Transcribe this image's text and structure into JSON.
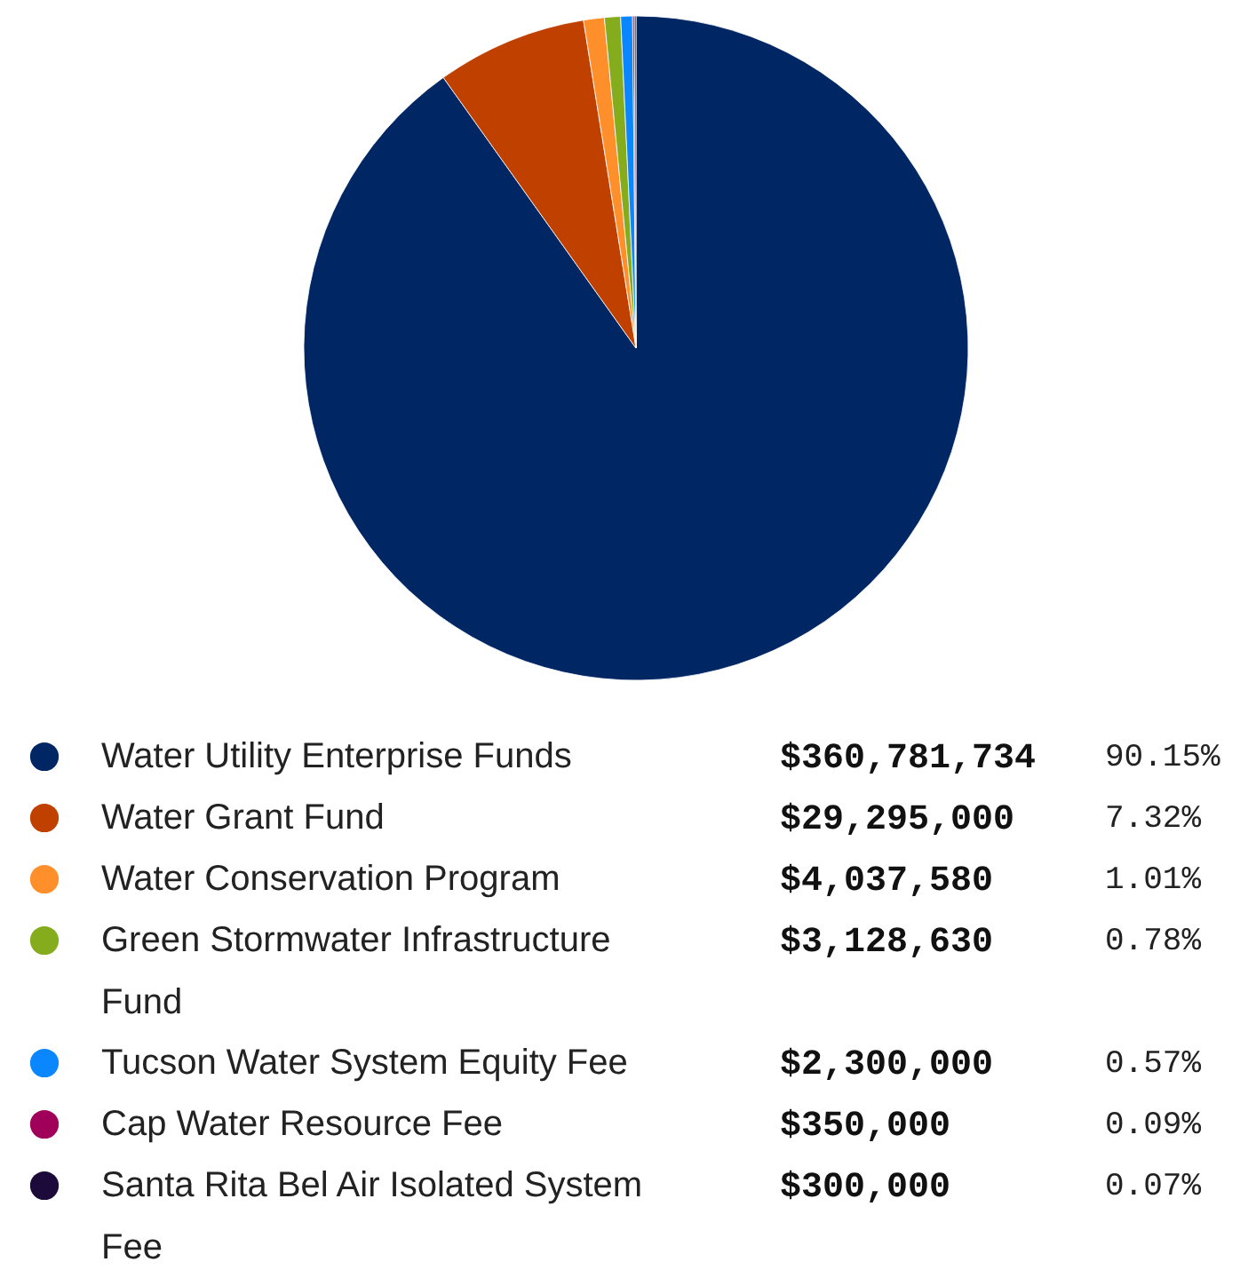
{
  "chart_data": {
    "type": "pie",
    "categories": [
      "Water Utility Enterprise Funds",
      "Water Grant Fund",
      "Water Conservation Program",
      "Green Stormwater Infrastructure Fund",
      "Tucson Water System Equity Fee",
      "Cap Water Resource Fee",
      "Santa Rita Bel Air Isolated System Fee"
    ],
    "values": [
      360781734,
      29295000,
      4037580,
      3128630,
      2300000,
      350000,
      300000
    ],
    "colors": [
      "#002664",
      "#c04000",
      "#ff8f2a",
      "#84ac1c",
      "#0a87ff",
      "#a0005a",
      "#1c0a3a"
    ],
    "value_labels": [
      "$360,781,734",
      "$29,295,000",
      "$4,037,580",
      "$3,128,630",
      "$2,300,000",
      "$350,000",
      "$300,000"
    ],
    "annotations": [
      "90.15%",
      "7.32%",
      "1.01%",
      "0.78%",
      "0.57%",
      "0.09%",
      "0.07%"
    ],
    "legend": "bottom"
  }
}
